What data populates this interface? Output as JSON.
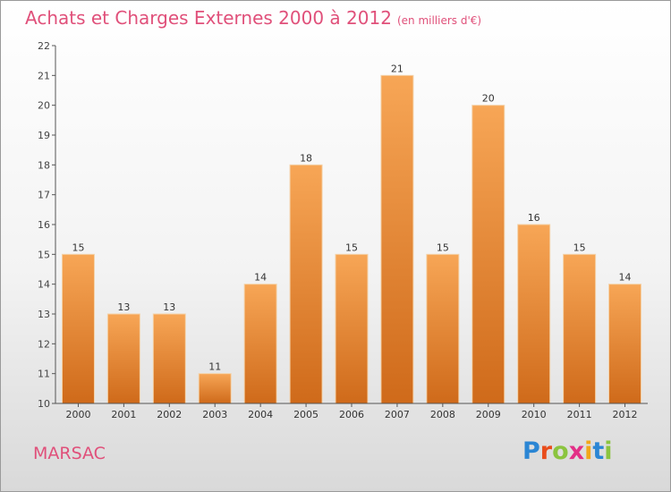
{
  "title": "Achats et Charges Externes 2000 à 2012",
  "subtitle": "(en milliers d'€)",
  "place": "MARSAC",
  "logo": {
    "text": "Proxiti",
    "letter_colors": [
      "#2b86d4",
      "#e94d1c",
      "#8bc43f",
      "#e32f87",
      "#f2a71b",
      "#2b86d4",
      "#8bc43f"
    ]
  },
  "colors": {
    "title": "#e0507a",
    "bar_top": "#f7a656",
    "bar_bottom": "#cf6a1a",
    "axis": "#555555"
  },
  "chart_data": {
    "type": "bar",
    "categories": [
      "2000",
      "2001",
      "2002",
      "2003",
      "2004",
      "2005",
      "2006",
      "2007",
      "2008",
      "2009",
      "2010",
      "2011",
      "2012"
    ],
    "values": [
      15,
      13,
      13,
      11,
      14,
      18,
      15,
      21,
      15,
      20,
      16,
      15,
      14
    ],
    "ylim": [
      10,
      22
    ],
    "yticks": [
      10,
      11,
      12,
      13,
      14,
      15,
      16,
      17,
      18,
      19,
      20,
      21,
      22
    ],
    "grid": false,
    "legend": "none",
    "data_labels": true
  }
}
